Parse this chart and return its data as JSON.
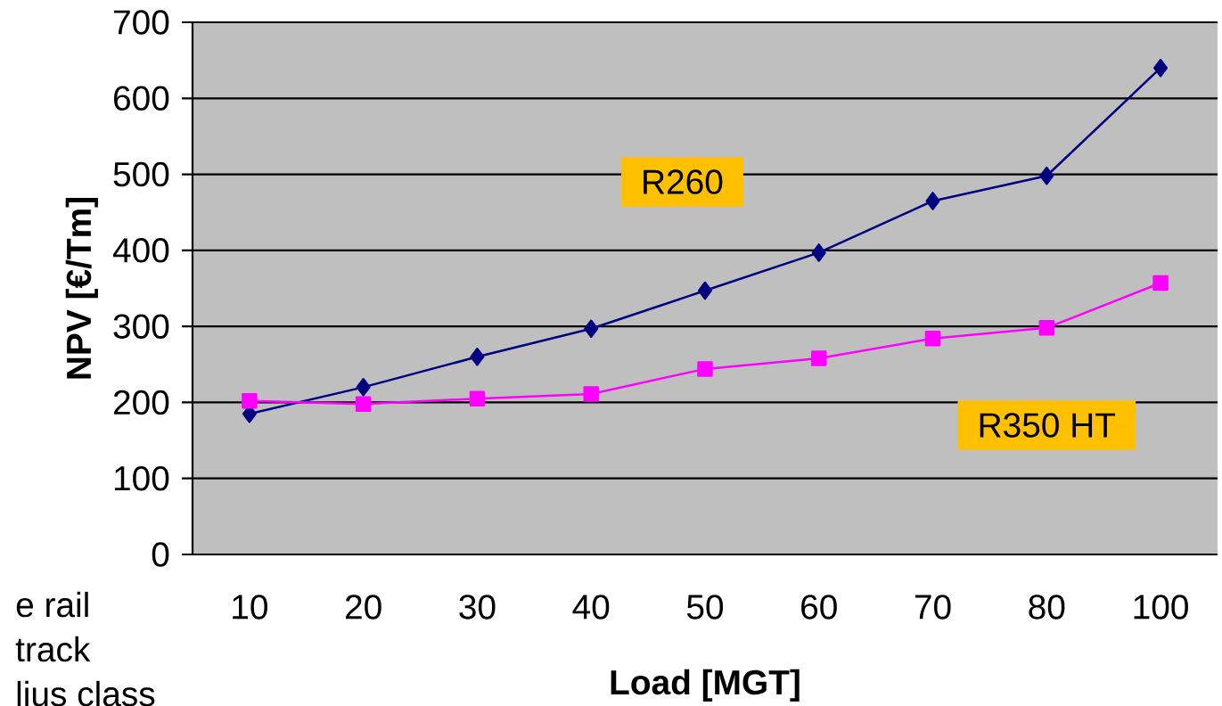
{
  "chart_data": {
    "type": "line",
    "xlabel": "Load [MGT]",
    "ylabel": "NPV [€/Tm]",
    "categories": [
      "10",
      "20",
      "30",
      "40",
      "50",
      "60",
      "70",
      "80",
      "100"
    ],
    "ylim": [
      0,
      700
    ],
    "yticks": [
      0,
      100,
      200,
      300,
      400,
      500,
      600,
      700
    ],
    "grid": "y",
    "series": [
      {
        "name": "R260",
        "color": "#000080",
        "marker": "diamond",
        "values": [
          185,
          220,
          260,
          297,
          347,
          397,
          465,
          498,
          640
        ]
      },
      {
        "name": "R350 HT",
        "color": "#ff00ff",
        "marker": "square",
        "values": [
          202,
          198,
          205,
          211,
          244,
          258,
          284,
          298,
          357
        ]
      }
    ],
    "annotations": [
      "e rail",
      "track",
      "lius class"
    ]
  }
}
